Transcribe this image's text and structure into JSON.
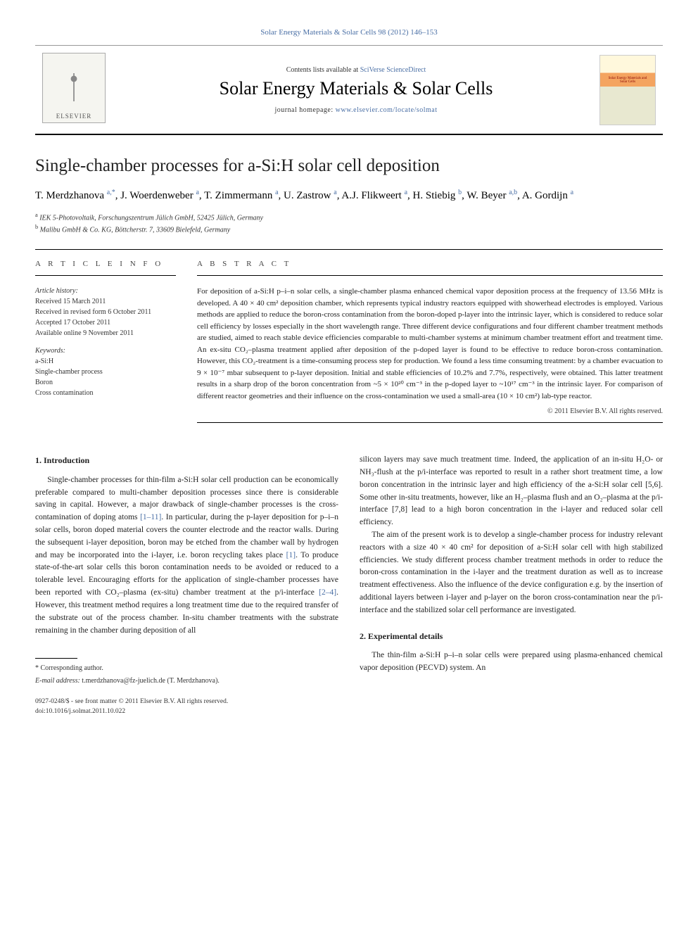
{
  "header": {
    "citation_link": "Solar Energy Materials & Solar Cells 98 (2012) 146–153",
    "contents_prefix": "Contents lists available at ",
    "contents_link": "SciVerse ScienceDirect",
    "journal_name": "Solar Energy Materials & Solar Cells",
    "homepage_prefix": "journal homepage: ",
    "homepage_url": "www.elsevier.com/locate/solmat",
    "publisher_logo_text": "ELSEVIER",
    "cover_label": "Solar Energy Materials and Solar Cells"
  },
  "article": {
    "title": "Single-chamber processes for a-Si:H solar cell deposition",
    "authors_html": "T. Merdzhanova <sup>a,*</sup>, J. Woerdenweber <sup>a</sup>, T. Zimmermann <sup>a</sup>, U. Zastrow <sup>a</sup>, A.J. Flikweert <sup>a</sup>, H. Stiebig <sup>b</sup>, W. Beyer <sup>a,b</sup>, A. Gordijn <sup>a</sup>",
    "affiliations": [
      {
        "marker": "a",
        "text": "IEK 5-Photovoltaik, Forschungszentrum Jülich GmbH, 52425 Jülich, Germany"
      },
      {
        "marker": "b",
        "text": "Malibu GmbH & Co. KG, Böttcherstr. 7, 33609 Bielefeld, Germany"
      }
    ]
  },
  "info": {
    "section_label": "A R T I C L E   I N F O",
    "history_label": "Article history:",
    "received": "Received 15 March 2011",
    "revised": "Received in revised form 6 October 2011",
    "accepted": "Accepted 17 October 2011",
    "online": "Available online 9 November 2011",
    "keywords_label": "Keywords:",
    "keywords": [
      "a-Si:H",
      "Single-chamber process",
      "Boron",
      "Cross contamination"
    ]
  },
  "abstract": {
    "section_label": "A B S T R A C T",
    "text": "For deposition of a-Si:H p–i–n solar cells, a single-chamber plasma enhanced chemical vapor deposition process at the frequency of 13.56 MHz is developed. A 40 × 40 cm² deposition chamber, which represents typical industry reactors equipped with showerhead electrodes is employed. Various methods are applied to reduce the boron-cross contamination from the boron-doped p-layer into the intrinsic layer, which is considered to reduce solar cell efficiency by losses especially in the short wavelength range. Three different device configurations and four different chamber treatment methods are studied, aimed to reach stable device efficiencies comparable to multi-chamber systems at minimum chamber treatment effort and treatment time. An ex-situ CO₂–plasma treatment applied after deposition of the p-doped layer is found to be effective to reduce boron-cross contamination. However, this CO₂-treatment is a time-consuming process step for production. We found a less time consuming treatment: by a chamber evacuation to 9 × 10⁻⁷ mbar subsequent to p-layer deposition. Initial and stable efficiencies of 10.2% and 7.7%, respectively, were obtained. This latter treatment results in a sharp drop of the boron concentration from ~5 × 10²⁰ cm⁻³ in the p-doped layer to ~10¹⁷ cm⁻³ in the intrinsic layer. For comparison of different reactor geometries and their influence on the cross-contamination we used a small-area (10 × 10 cm²) lab-type reactor.",
    "copyright": "© 2011 Elsevier B.V. All rights reserved."
  },
  "body": {
    "sections": [
      {
        "heading": "1.  Introduction",
        "paragraphs": [
          "Single-chamber processes for thin-film a-Si:H solar cell production can be economically preferable compared to multi-chamber deposition processes since there is considerable saving in capital. However, a major drawback of single-chamber processes is the cross-contamination of doping atoms [1–11]. In particular, during the p-layer deposition for p–i–n solar cells, boron doped material covers the counter electrode and the reactor walls. During the subsequent i-layer deposition, boron may be etched from the chamber wall by hydrogen and may be incorporated into the i-layer, i.e. boron recycling takes place [1]. To produce state-of-the-art solar cells this boron contamination needs to be avoided or reduced to a tolerable level. Encouraging efforts for the application of single-chamber processes have been reported with CO₂–plasma (ex-situ) chamber treatment at the p/i-interface [2–4]. However, this treatment method requires a long treatment time due to the required transfer of the substrate out of the process chamber. In-situ chamber treatments with the substrate remaining in the chamber during deposition of all",
          "silicon layers may save much treatment time. Indeed, the application of an in-situ H₂O- or NH₃-flush at the p/i-interface was reported to result in a rather short treatment time, a low boron concentration in the intrinsic layer and high efficiency of the a-Si:H solar cell [5,6]. Some other in-situ treatments, however, like an H₂–plasma flush and an O₂–plasma at the p/i-interface [7,8] lead to a high boron concentration in the i-layer and reduced solar cell efficiency.",
          "The aim of the present work is to develop a single-chamber process for industry relevant reactors with a size 40 × 40 cm² for deposition of a-Si:H solar cell with high stabilized efficiencies. We study different process chamber treatment methods in order to reduce the boron-cross contamination in the i-layer and the treatment duration as well as to increase treatment effectiveness. Also the influence of the device configuration e.g. by the insertion of additional layers between i-layer and p-layer on the boron cross-contamination near the p/i-interface and the stabilized solar cell performance are investigated."
        ]
      },
      {
        "heading": "2.  Experimental details",
        "paragraphs": [
          "The thin-film a-Si:H p–i–n solar cells were prepared using plasma-enhanced chemical vapor deposition (PECVD) system. An"
        ]
      }
    ]
  },
  "footer": {
    "corresponding_label": "* Corresponding author.",
    "email_label": "E-mail address: ",
    "email": "t.merdzhanova@fz-juelich.de (T. Merdzhanova).",
    "issn_line": "0927-0248/$ - see front matter © 2011 Elsevier B.V. All rights reserved.",
    "doi_line": "doi:10.1016/j.solmat.2011.10.022"
  },
  "colors": {
    "link": "#4a6fa5",
    "text": "#222222",
    "border": "#000000"
  }
}
